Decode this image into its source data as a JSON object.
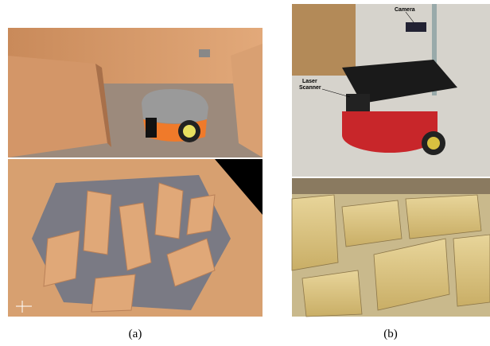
{
  "figure": {
    "panel_b_labels": {
      "camera": "Camera",
      "laser": [
        "Laser",
        "Scanner"
      ]
    },
    "captions": [
      "(a)",
      "(b)"
    ]
  }
}
